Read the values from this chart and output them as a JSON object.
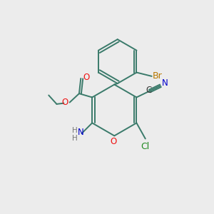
{
  "bg_color": "#ececec",
  "bond_color": "#3a7a6a",
  "bond_lw": 1.4,
  "atom_colors": {
    "O": "#ee1111",
    "N": "#0000cc",
    "Br": "#b87800",
    "Cl": "#208820",
    "C": "#333333",
    "H": "#777777",
    "default": "#3a7a6a"
  },
  "font_size": 8.5
}
